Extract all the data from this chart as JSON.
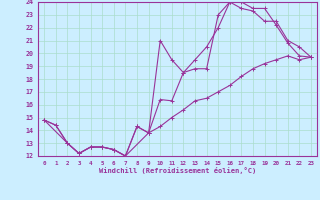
{
  "xlabel": "Windchill (Refroidissement éolien,°C)",
  "bg_color": "#cceeff",
  "grid_color": "#aaddcc",
  "line_color": "#993399",
  "xlim": [
    -0.5,
    23.5
  ],
  "ylim": [
    12,
    24
  ],
  "xticks": [
    0,
    1,
    2,
    3,
    4,
    5,
    6,
    7,
    8,
    9,
    10,
    11,
    12,
    13,
    14,
    15,
    16,
    17,
    18,
    19,
    20,
    21,
    22,
    23
  ],
  "yticks": [
    12,
    13,
    14,
    15,
    16,
    17,
    18,
    19,
    20,
    21,
    22,
    23,
    24
  ],
  "line1_x": [
    0,
    2,
    3,
    4,
    5,
    6,
    7,
    9,
    10,
    11,
    12,
    13,
    14,
    15,
    16,
    17,
    18,
    19,
    20,
    21,
    22,
    23
  ],
  "line1_y": [
    14.8,
    13.0,
    12.2,
    12.7,
    12.7,
    12.5,
    12.0,
    13.8,
    16.4,
    16.3,
    18.5,
    19.5,
    20.5,
    22.0,
    24.0,
    24.0,
    23.5,
    23.5,
    22.2,
    20.8,
    19.8,
    19.7
  ],
  "line2_x": [
    0,
    1,
    2,
    3,
    4,
    5,
    6,
    7,
    8,
    9,
    10,
    11,
    12,
    13,
    14,
    15,
    16,
    17,
    18,
    19,
    20,
    21,
    22,
    23
  ],
  "line2_y": [
    14.8,
    14.4,
    13.0,
    12.2,
    12.7,
    12.7,
    12.5,
    12.0,
    14.3,
    13.8,
    21.0,
    19.5,
    18.5,
    18.8,
    18.8,
    23.0,
    24.0,
    23.5,
    23.3,
    22.5,
    22.5,
    21.0,
    20.5,
    19.7
  ],
  "line3_x": [
    0,
    1,
    2,
    3,
    4,
    5,
    6,
    7,
    8,
    9,
    10,
    11,
    12,
    13,
    14,
    15,
    16,
    17,
    18,
    19,
    20,
    21,
    22,
    23
  ],
  "line3_y": [
    14.8,
    14.4,
    13.0,
    12.2,
    12.7,
    12.7,
    12.5,
    12.0,
    14.3,
    13.8,
    14.3,
    15.0,
    15.6,
    16.3,
    16.5,
    17.0,
    17.5,
    18.2,
    18.8,
    19.2,
    19.5,
    19.8,
    19.5,
    19.7
  ]
}
